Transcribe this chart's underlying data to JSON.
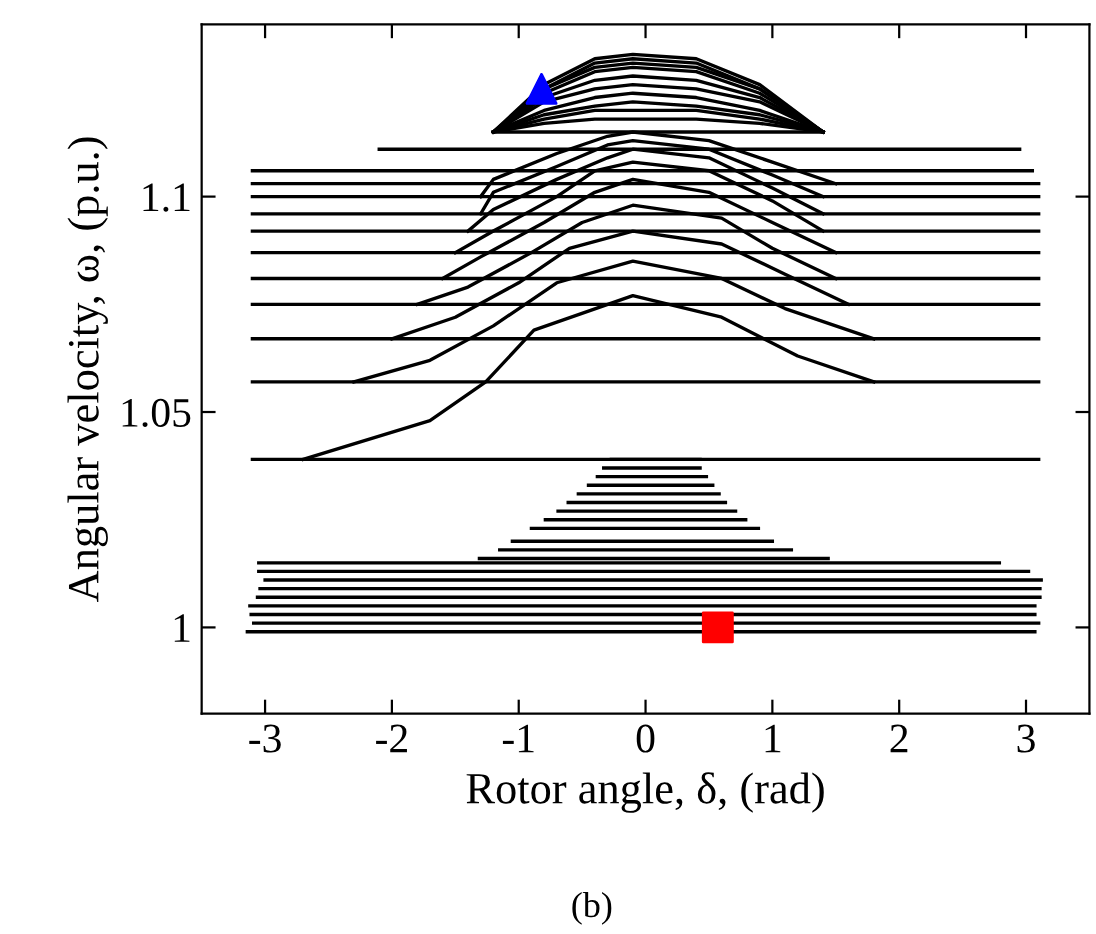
{
  "chart_data": {
    "type": "line",
    "xlabel": "Rotor angle, δ, (rad)",
    "ylabel": "Angular velocity, ω, (p.u.)",
    "annotations": [
      "(b)"
    ],
    "xlim": [
      -3.5,
      3.5
    ],
    "ylim": [
      0.98,
      1.14
    ],
    "xticks": [
      -3,
      -2,
      -1,
      0,
      1,
      2,
      3
    ],
    "yticks": [
      1,
      1.05,
      1.1
    ],
    "grid": false,
    "marker": "none",
    "line_style": "solid",
    "series": [
      {
        "color": "#000000",
        "x": [
          -3.1,
          3.1
        ],
        "values": [
          1.039,
          1.039
        ]
      },
      {
        "color": "#000000",
        "x": [
          -3.1,
          3.1
        ],
        "values": [
          1.057,
          1.057
        ]
      },
      {
        "color": "#000000",
        "x": [
          -3.1,
          3.1
        ],
        "values": [
          1.067,
          1.067
        ]
      },
      {
        "color": "#000000",
        "x": [
          -3.1,
          3.1
        ],
        "values": [
          1.075,
          1.075
        ]
      },
      {
        "color": "#000000",
        "x": [
          -3.1,
          3.1
        ],
        "values": [
          1.081,
          1.081
        ]
      },
      {
        "color": "#000000",
        "x": [
          -3.1,
          3.1
        ],
        "values": [
          1.087,
          1.087
        ]
      },
      {
        "color": "#000000",
        "x": [
          -3.1,
          3.1
        ],
        "values": [
          1.092,
          1.092
        ]
      },
      {
        "color": "#000000",
        "x": [
          -3.1,
          3.1
        ],
        "values": [
          1.096,
          1.096
        ]
      },
      {
        "color": "#000000",
        "x": [
          -3.1,
          3.1
        ],
        "values": [
          1.1,
          1.1
        ]
      },
      {
        "color": "#000000",
        "x": [
          -3.1,
          3.1
        ],
        "values": [
          1.103,
          1.103
        ]
      },
      {
        "color": "#000000",
        "x": [
          -3.1,
          3.05
        ],
        "values": [
          1.106,
          1.106
        ]
      },
      {
        "color": "#000000",
        "x": [
          -2.1,
          2.95
        ],
        "values": [
          1.111,
          1.111
        ]
      },
      {
        "color": "#000000",
        "x": [
          -2.7,
          -1.7,
          -1.26,
          -0.88,
          -0.1,
          0.6,
          1.2,
          1.8
        ],
        "values": [
          1.039,
          1.048,
          1.057,
          1.069,
          1.077,
          1.072,
          1.063,
          1.057
        ]
      },
      {
        "color": "#000000",
        "x": [
          -2.3,
          -1.7,
          -1.2,
          -0.7,
          -0.1,
          0.6,
          1.1,
          1.8
        ],
        "values": [
          1.057,
          1.062,
          1.07,
          1.08,
          1.085,
          1.081,
          1.074,
          1.067
        ]
      },
      {
        "color": "#000000",
        "x": [
          -2.0,
          -1.5,
          -1.0,
          -0.6,
          -0.1,
          0.6,
          1.1,
          1.6
        ],
        "values": [
          1.067,
          1.072,
          1.08,
          1.088,
          1.092,
          1.089,
          1.082,
          1.075
        ]
      },
      {
        "color": "#000000",
        "x": [
          -1.8,
          -1.4,
          -0.9,
          -0.5,
          -0.1,
          0.6,
          1.0,
          1.5
        ],
        "values": [
          1.075,
          1.079,
          1.087,
          1.094,
          1.098,
          1.095,
          1.088,
          1.081
        ]
      },
      {
        "color": "#000000",
        "x": [
          -1.6,
          -1.3,
          -0.8,
          -0.4,
          -0.1,
          0.5,
          1.0,
          1.5
        ],
        "values": [
          1.081,
          1.086,
          1.094,
          1.101,
          1.104,
          1.101,
          1.094,
          1.087
        ]
      },
      {
        "color": "#000000",
        "x": [
          -1.5,
          -1.2,
          -0.7,
          -0.4,
          -0.1,
          0.5,
          1.0,
          1.4
        ],
        "values": [
          1.087,
          1.092,
          1.1,
          1.106,
          1.108,
          1.106,
          1.099,
          1.092
        ]
      },
      {
        "color": "#000000",
        "x": [
          -1.4,
          -1.2,
          -0.7,
          -0.3,
          -0.1,
          0.5,
          1.0,
          1.4
        ],
        "values": [
          1.092,
          1.097,
          1.104,
          1.109,
          1.111,
          1.109,
          1.102,
          1.096
        ]
      },
      {
        "color": "#000000",
        "x": [
          -1.3,
          -1.2,
          -0.7,
          -0.3,
          -0.1,
          0.5,
          1.0,
          1.4
        ],
        "values": [
          1.096,
          1.101,
          1.107,
          1.112,
          1.113,
          1.111,
          1.105,
          1.1
        ]
      },
      {
        "color": "#000000",
        "x": [
          -1.3,
          -1.2,
          -0.7,
          -0.3,
          -0.1,
          0.5,
          1.0,
          1.5
        ],
        "values": [
          1.1,
          1.104,
          1.11,
          1.114,
          1.115,
          1.113,
          1.108,
          1.103
        ]
      },
      {
        "color": "#000000",
        "x": [
          -1.2,
          1.4
        ],
        "values": [
          1.115,
          1.115
        ]
      },
      {
        "color": "#000000",
        "x": [
          -1.2,
          -0.8,
          -0.4,
          -0.1,
          0.4,
          0.9,
          1.4
        ],
        "values": [
          1.115,
          1.117,
          1.118,
          1.118,
          1.118,
          1.117,
          1.115
        ]
      },
      {
        "color": "#000000",
        "x": [
          -1.2,
          -0.8,
          -0.4,
          -0.1,
          0.4,
          0.9,
          1.4
        ],
        "values": [
          1.115,
          1.118,
          1.12,
          1.12,
          1.12,
          1.118,
          1.115
        ]
      },
      {
        "color": "#000000",
        "x": [
          -1.2,
          -0.8,
          -0.4,
          -0.1,
          0.4,
          0.9,
          1.4
        ],
        "values": [
          1.115,
          1.119,
          1.121,
          1.122,
          1.121,
          1.119,
          1.115
        ]
      },
      {
        "color": "#000000",
        "x": [
          -1.2,
          -0.8,
          -0.4,
          -0.1,
          0.4,
          0.9,
          1.4
        ],
        "values": [
          1.115,
          1.12,
          1.123,
          1.124,
          1.123,
          1.12,
          1.115
        ]
      },
      {
        "color": "#000000",
        "x": [
          -1.2,
          -0.8,
          -0.4,
          -0.1,
          0.4,
          0.9,
          1.4
        ],
        "values": [
          1.115,
          1.122,
          1.125,
          1.126,
          1.125,
          1.122,
          1.115
        ]
      },
      {
        "color": "#000000",
        "x": [
          -1.2,
          -0.8,
          -0.4,
          -0.1,
          0.4,
          0.9,
          1.4
        ],
        "values": [
          1.115,
          1.123,
          1.127,
          1.128,
          1.127,
          1.123,
          1.115
        ]
      },
      {
        "color": "#000000",
        "x": [
          -1.2,
          -0.8,
          -0.4,
          -0.1,
          0.4,
          0.9,
          1.4
        ],
        "values": [
          1.115,
          1.124,
          1.129,
          1.13,
          1.129,
          1.124,
          1.115
        ]
      },
      {
        "color": "#000000",
        "x": [
          -1.2,
          -0.8,
          -0.4,
          -0.1,
          0.4,
          0.9,
          1.4
        ],
        "values": [
          1.115,
          1.125,
          1.13,
          1.131,
          1.13,
          1.125,
          1.115
        ]
      },
      {
        "color": "#000000",
        "x": [
          -1.2,
          -0.8,
          -0.4,
          -0.1,
          0.4,
          0.9,
          1.4
        ],
        "values": [
          1.115,
          1.125,
          1.131,
          1.132,
          1.131,
          1.125,
          1.115
        ]
      },
      {
        "color": "#000000",
        "x": [
          -1.2,
          -0.8,
          -0.4,
          -0.1,
          0.4,
          0.9,
          1.4
        ],
        "values": [
          1.115,
          1.126,
          1.132,
          1.133,
          1.132,
          1.126,
          1.115
        ]
      },
      {
        "color": "#000000",
        "x": [
          -0.27,
          0.43
        ],
        "values": [
          1.039,
          1.039
        ]
      },
      {
        "color": "#000000",
        "x": [
          -0.33,
          0.43
        ],
        "values": [
          1.037,
          1.037
        ]
      },
      {
        "color": "#000000",
        "x": [
          -0.38,
          0.48
        ],
        "values": [
          1.035,
          1.035
        ]
      },
      {
        "color": "#000000",
        "x": [
          -0.45,
          0.53
        ],
        "values": [
          1.033,
          1.033
        ]
      },
      {
        "color": "#000000",
        "x": [
          -0.53,
          0.58
        ],
        "values": [
          1.031,
          1.031
        ]
      },
      {
        "color": "#000000",
        "x": [
          -0.61,
          0.63
        ],
        "values": [
          1.029,
          1.029
        ]
      },
      {
        "color": "#000000",
        "x": [
          -0.69,
          0.71
        ],
        "values": [
          1.027,
          1.027
        ]
      },
      {
        "color": "#000000",
        "x": [
          -0.79,
          0.79
        ],
        "values": [
          1.025,
          1.025
        ]
      },
      {
        "color": "#000000",
        "x": [
          -0.9,
          0.89
        ],
        "values": [
          1.023,
          1.023
        ]
      },
      {
        "color": "#000000",
        "x": [
          -1.05,
          1.0
        ],
        "values": [
          1.02,
          1.02
        ]
      },
      {
        "color": "#000000",
        "x": [
          -1.15,
          1.15
        ],
        "values": [
          1.018,
          1.018
        ]
      },
      {
        "color": "#000000",
        "x": [
          -1.31,
          1.44
        ],
        "values": [
          1.016,
          1.016
        ]
      },
      {
        "color": "#000000",
        "x": [
          -3.05,
          2.79
        ],
        "values": [
          1.015,
          1.015
        ]
      },
      {
        "color": "#000000",
        "x": [
          -3.05,
          3.02
        ],
        "values": [
          1.013,
          1.013
        ]
      },
      {
        "color": "#000000",
        "x": [
          -3.0,
          3.12
        ],
        "values": [
          1.011,
          1.011
        ]
      },
      {
        "color": "#000000",
        "x": [
          -3.04,
          3.11
        ],
        "values": [
          1.009,
          1.009
        ]
      },
      {
        "color": "#000000",
        "x": [
          -3.06,
          3.11
        ],
        "values": [
          1.007,
          1.007
        ]
      },
      {
        "color": "#000000",
        "x": [
          -3.12,
          3.07
        ],
        "values": [
          1.005,
          1.005
        ]
      },
      {
        "color": "#000000",
        "x": [
          -3.11,
          3.07
        ],
        "values": [
          1.003,
          1.003
        ]
      },
      {
        "color": "#000000",
        "x": [
          -3.09,
          3.1
        ],
        "values": [
          1.001,
          1.001
        ]
      },
      {
        "color": "#000000",
        "x": [
          -3.14,
          3.07
        ],
        "values": [
          0.999,
          0.999
        ]
      },
      {
        "type": "scatter",
        "marker": "triangle",
        "color": "#0000ff",
        "x": [
          -0.82
        ],
        "values": [
          1.125
        ]
      },
      {
        "type": "scatter",
        "marker": "square",
        "color": "#ff0000",
        "x": [
          0.57
        ],
        "values": [
          1.0
        ]
      }
    ]
  }
}
